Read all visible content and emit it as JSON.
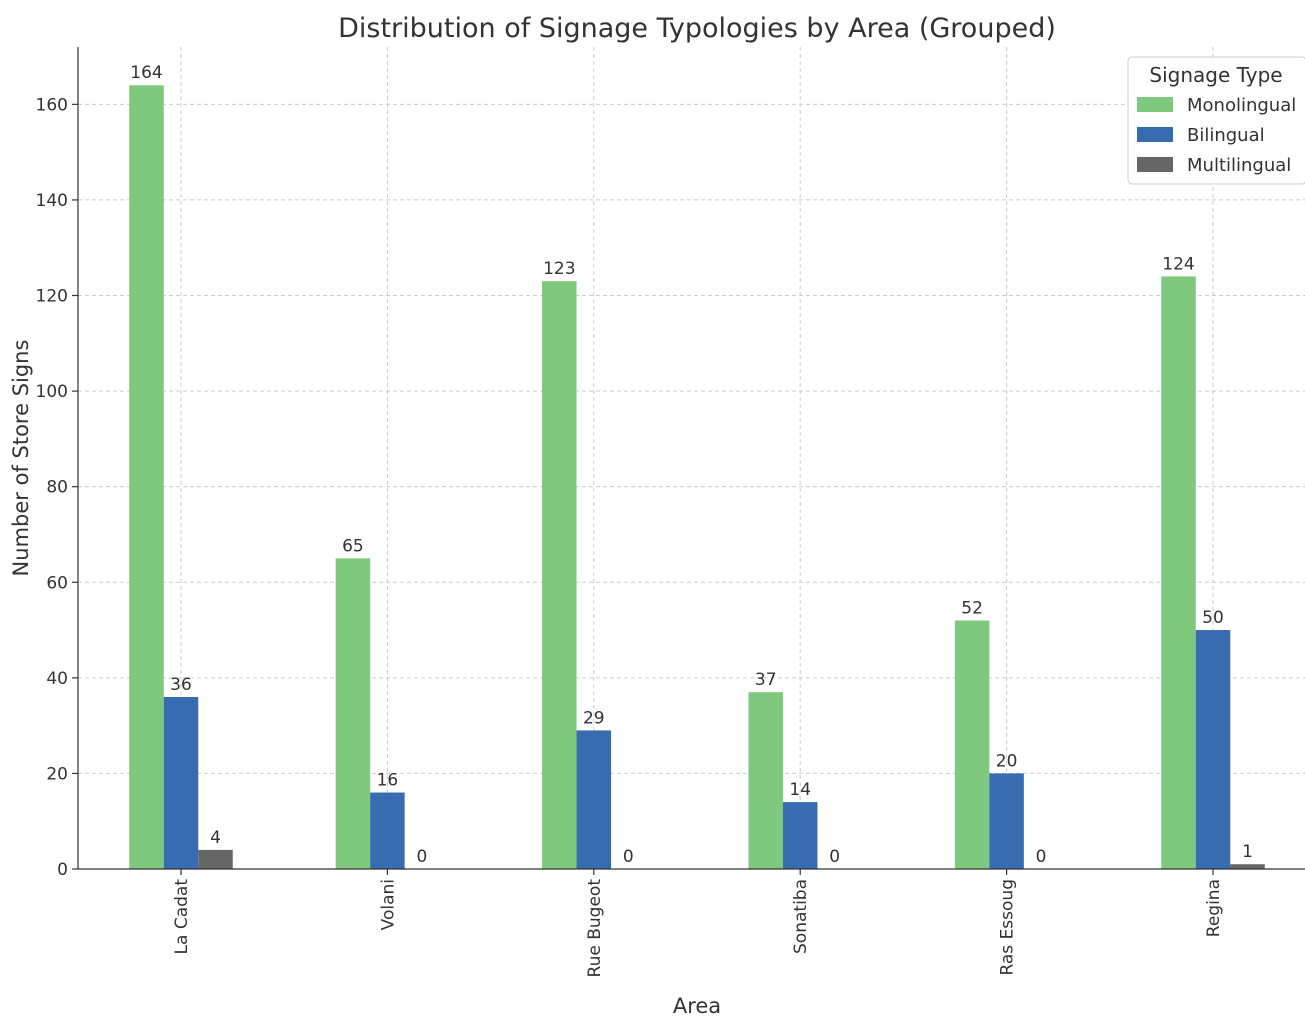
{
  "chart_data": {
    "type": "bar",
    "title": "Distribution of Signage Typologies by Area (Grouped)",
    "xlabel": "Area",
    "ylabel": "Number of Store Signs",
    "categories": [
      "La Cadat",
      "Volani",
      "Rue Bugeot",
      "Sonatiba",
      "Ras Essoug",
      "Regina"
    ],
    "series": [
      {
        "name": "Monolingual",
        "color": "#7fc97f",
        "values": [
          164,
          65,
          123,
          37,
          52,
          124
        ]
      },
      {
        "name": "Bilingual",
        "color": "#386cb0",
        "values": [
          36,
          16,
          29,
          14,
          20,
          50
        ]
      },
      {
        "name": "Multilingual",
        "color": "#666666",
        "values": [
          4,
          0,
          0,
          0,
          0,
          1
        ]
      }
    ],
    "ylim": [
      0,
      172
    ],
    "yticks": [
      0,
      20,
      40,
      60,
      80,
      100,
      120,
      140,
      160
    ],
    "grid": true,
    "legend": {
      "title": "Signage Type",
      "position": "upper right"
    }
  }
}
